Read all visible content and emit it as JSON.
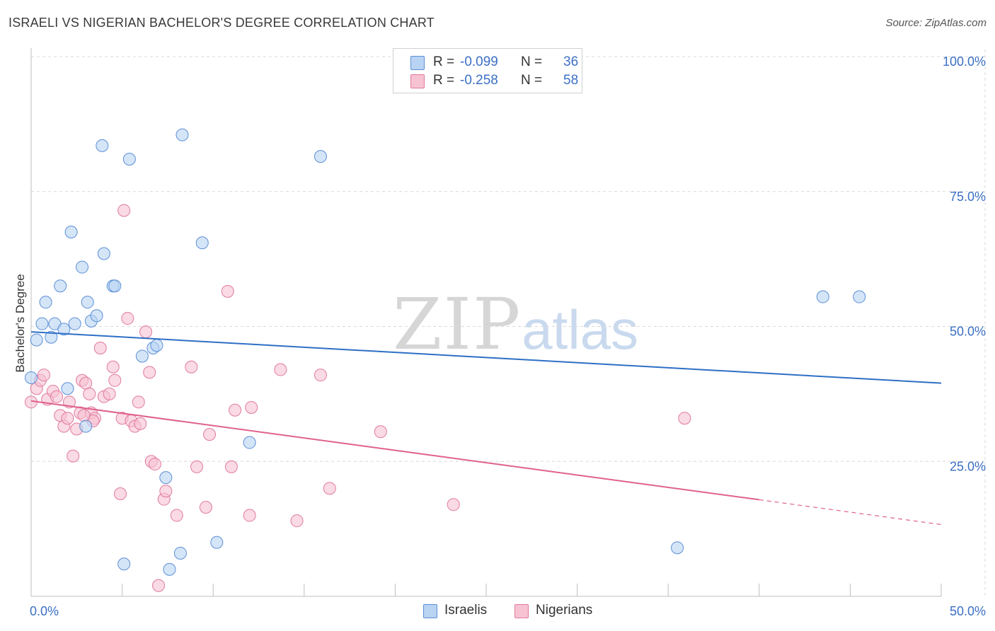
{
  "title": "ISRAELI VS NIGERIAN BACHELOR'S DEGREE CORRELATION CHART",
  "source": "Source: ZipAtlas.com",
  "watermark": {
    "part1": "ZIP",
    "part2": "atlas"
  },
  "colors": {
    "israelis_fill": "#b9d3f3",
    "israelis_stroke": "#5b8fd6",
    "israelis_line": "#2e6fc6",
    "nigerians_fill": "#f7c2d2",
    "nigerians_stroke": "#e07a9d",
    "nigerians_line": "#e0618e",
    "grid": "#d8d8d8",
    "tick_text": "#3b6fc4"
  },
  "legend": {
    "israelis": {
      "r_label": "R =",
      "r_value": "-0.099",
      "n_label": "N =",
      "n_value": "36"
    },
    "nigerians": {
      "r_label": "R =",
      "r_value": "-0.258",
      "n_label": "N =",
      "n_value": "58"
    }
  },
  "bottom_legend": {
    "israelis": "Israelis",
    "nigerians": "Nigerians"
  },
  "chart_data": {
    "type": "scatter",
    "title": "ISRAELI VS NIGERIAN BACHELOR'S DEGREE CORRELATION CHART",
    "xlabel": "",
    "ylabel": "Bachelor's Degree",
    "xlim": [
      0,
      50
    ],
    "ylim": [
      0,
      100
    ],
    "x_tick_labels": [
      "0.0%",
      "50.0%"
    ],
    "y_tick_labels": [
      "100.0%",
      "75.0%",
      "50.0%",
      "25.0%"
    ],
    "y_ticks": [
      100,
      75,
      50,
      25
    ],
    "series": [
      {
        "name": "Israelis",
        "points": [
          [
            0.0,
            40.5
          ],
          [
            0.3,
            47.5
          ],
          [
            0.6,
            50.5
          ],
          [
            0.8,
            54.5
          ],
          [
            1.1,
            48.0
          ],
          [
            1.3,
            50.5
          ],
          [
            1.6,
            57.5
          ],
          [
            1.8,
            49.5
          ],
          [
            2.0,
            38.5
          ],
          [
            2.2,
            67.5
          ],
          [
            2.4,
            50.5
          ],
          [
            2.8,
            61.0
          ],
          [
            3.1,
            54.5
          ],
          [
            3.3,
            51.0
          ],
          [
            3.6,
            52.0
          ],
          [
            3.9,
            83.5
          ],
          [
            4.0,
            63.5
          ],
          [
            4.5,
            57.5
          ],
          [
            4.6,
            57.5
          ],
          [
            5.4,
            81.0
          ],
          [
            6.1,
            44.5
          ],
          [
            6.7,
            46.0
          ],
          [
            6.9,
            46.5
          ],
          [
            7.4,
            22.0
          ],
          [
            7.6,
            5.0
          ],
          [
            8.3,
            85.5
          ],
          [
            8.2,
            8.0
          ],
          [
            9.4,
            65.5
          ],
          [
            10.2,
            10.0
          ],
          [
            12.0,
            28.5
          ],
          [
            15.9,
            81.5
          ],
          [
            3.0,
            31.5
          ],
          [
            5.1,
            6.0
          ],
          [
            35.5,
            9.0
          ],
          [
            43.5,
            55.5
          ],
          [
            45.5,
            55.5
          ]
        ]
      },
      {
        "name": "Nigerians",
        "points": [
          [
            0.0,
            36.0
          ],
          [
            0.3,
            38.5
          ],
          [
            0.5,
            40.0
          ],
          [
            0.7,
            41.0
          ],
          [
            0.9,
            36.5
          ],
          [
            1.2,
            38.0
          ],
          [
            1.4,
            37.0
          ],
          [
            1.6,
            33.5
          ],
          [
            1.8,
            31.5
          ],
          [
            2.0,
            33.0
          ],
          [
            2.1,
            36.0
          ],
          [
            2.3,
            26.0
          ],
          [
            2.5,
            31.0
          ],
          [
            2.7,
            34.0
          ],
          [
            2.8,
            40.0
          ],
          [
            3.0,
            39.5
          ],
          [
            3.2,
            37.5
          ],
          [
            3.3,
            34.0
          ],
          [
            3.5,
            33.0
          ],
          [
            3.8,
            46.0
          ],
          [
            4.0,
            37.0
          ],
          [
            4.3,
            37.5
          ],
          [
            4.5,
            42.5
          ],
          [
            4.6,
            40.0
          ],
          [
            4.9,
            19.0
          ],
          [
            5.0,
            33.0
          ],
          [
            5.1,
            71.5
          ],
          [
            5.3,
            51.5
          ],
          [
            5.5,
            32.5
          ],
          [
            5.7,
            31.5
          ],
          [
            5.9,
            36.0
          ],
          [
            6.0,
            32.0
          ],
          [
            6.3,
            49.0
          ],
          [
            6.5,
            41.5
          ],
          [
            6.6,
            25.0
          ],
          [
            6.8,
            24.5
          ],
          [
            7.3,
            18.0
          ],
          [
            7.4,
            19.5
          ],
          [
            7.0,
            2.0
          ],
          [
            8.0,
            15.0
          ],
          [
            8.8,
            42.5
          ],
          [
            9.1,
            24.0
          ],
          [
            9.6,
            16.5
          ],
          [
            9.8,
            30.0
          ],
          [
            10.8,
            56.5
          ],
          [
            11.0,
            24.0
          ],
          [
            11.2,
            34.5
          ],
          [
            12.0,
            15.0
          ],
          [
            12.1,
            35.0
          ],
          [
            13.7,
            42.0
          ],
          [
            14.6,
            14.0
          ],
          [
            15.9,
            41.0
          ],
          [
            16.4,
            20.0
          ],
          [
            19.2,
            30.5
          ],
          [
            23.2,
            17.0
          ],
          [
            35.9,
            33.0
          ],
          [
            3.4,
            32.5
          ],
          [
            2.9,
            33.5
          ]
        ]
      }
    ],
    "trend_lines": [
      {
        "name": "Israelis",
        "x": [
          0,
          50
        ],
        "y": [
          49.0,
          39.5
        ],
        "style": "solid"
      },
      {
        "name": "Nigerians",
        "x": [
          0,
          40
        ],
        "y": [
          36.2,
          17.9
        ],
        "style": "solid"
      },
      {
        "name": "Nigerians-extrapolated",
        "x": [
          40,
          50
        ],
        "y": [
          17.9,
          13.3
        ],
        "style": "dashed"
      }
    ],
    "grid": true,
    "legend_position": "top-center"
  }
}
